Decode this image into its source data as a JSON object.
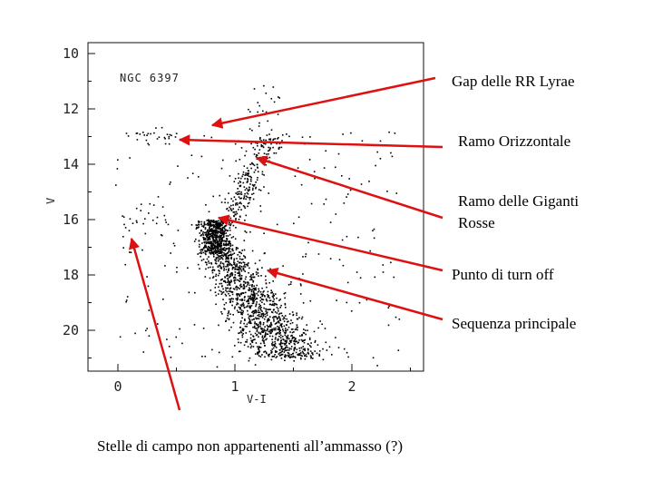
{
  "chart_data": {
    "type": "scatter",
    "title": "NGC 6397",
    "xlabel": "V-I",
    "ylabel": "V",
    "xlim": [
      -0.25,
      2.6
    ],
    "ylim": [
      21.5,
      9.8
    ],
    "y_inverted": true,
    "xticks": [
      "0",
      "1",
      "2"
    ],
    "xtick_values": [
      0,
      1,
      2
    ],
    "yticks": [
      "10",
      "12",
      "14",
      "16",
      "18",
      "20"
    ],
    "ytick_values": [
      10,
      12,
      14,
      16,
      18,
      20
    ],
    "point_color": "#000000",
    "series": [
      {
        "region": "main-sequence",
        "x_range": [
          0.6,
          1.6
        ],
        "y_range": [
          15.7,
          21.0
        ]
      },
      {
        "region": "turn-off",
        "x_range": [
          0.7,
          1.1
        ],
        "y_range": [
          15.8,
          17.5
        ]
      },
      {
        "region": "red-giant-branch",
        "x_range": [
          0.9,
          1.5
        ],
        "y_range": [
          13.0,
          16.0
        ]
      },
      {
        "region": "horizontal-branch",
        "x_range": [
          0.1,
          0.45
        ],
        "y_range": [
          12.9,
          13.2
        ]
      },
      {
        "region": "field-stars",
        "x_range": [
          -0.1,
          2.5
        ],
        "y_range": [
          11.0,
          21.0
        ]
      }
    ]
  },
  "annotations": [
    {
      "label": "Gap delle RR Lyrae"
    },
    {
      "label": "Ramo Orizzontale"
    },
    {
      "label_line1": "Ramo delle Giganti",
      "label_line2": "Rosse"
    },
    {
      "label": "Punto di turn off"
    },
    {
      "label": "Sequenza principale"
    }
  ],
  "caption": "Stelle di campo non appartenenti all’ammasso (?)",
  "arrow_color": "#dd1111"
}
